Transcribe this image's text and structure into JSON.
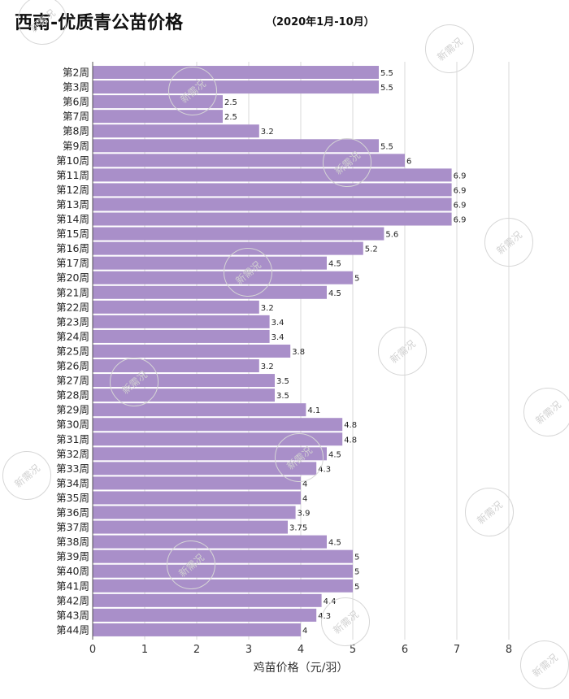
{
  "chart_data": {
    "type": "bar",
    "orientation": "horizontal",
    "title": "西南-优质青公苗价格",
    "subtitle": "（2020年1月-10月）",
    "xlabel": "鸡苗价格（元/羽）",
    "ylabel": "",
    "xlim": [
      0,
      8
    ],
    "xticks": [
      "0",
      "1",
      "2",
      "3",
      "4",
      "5",
      "6",
      "7",
      "8"
    ],
    "grid": true,
    "bar_color": "#a98fc9",
    "categories": [
      "第2周",
      "第3周",
      "第6周",
      "第7周",
      "第8周",
      "第9周",
      "第10周",
      "第11周",
      "第12周",
      "第13周",
      "第14周",
      "第15周",
      "第16周",
      "第17周",
      "第20周",
      "第21周",
      "第22周",
      "第23周",
      "第24周",
      "第25周",
      "第26周",
      "第27周",
      "第28周",
      "第29周",
      "第30周",
      "第31周",
      "第32周",
      "第33周",
      "第34周",
      "第35周",
      "第36周",
      "第37周",
      "第38周",
      "第39周",
      "第40周",
      "第41周",
      "第42周",
      "第43周",
      "第44周"
    ],
    "values": [
      5.5,
      5.5,
      2.5,
      2.5,
      3.2,
      5.5,
      6,
      6.9,
      6.9,
      6.9,
      6.9,
      5.6,
      5.2,
      4.5,
      5,
      4.5,
      3.2,
      3.4,
      3.4,
      3.8,
      3.2,
      3.5,
      3.5,
      4.1,
      4.8,
      4.8,
      4.5,
      4.3,
      4,
      4,
      3.9,
      3.75,
      4.5,
      5,
      5,
      5,
      4.4,
      4.3,
      4
    ],
    "value_labels": [
      "5.5",
      "5.5",
      "2.5",
      "2.5",
      "3.2",
      "5.5",
      "6",
      "6.9",
      "6.9",
      "6.9",
      "6.9",
      "5.6",
      "5.2",
      "4.5",
      "5",
      "4.5",
      "3.2",
      "3.4",
      "3.4",
      "3.8",
      "3.2",
      "3.5",
      "3.5",
      "4.1",
      "4.8",
      "4.8",
      "4.5",
      "4.3",
      "4",
      "4",
      "3.9",
      "3.75",
      "4.5",
      "5",
      "5",
      "5",
      "4.4",
      "4.3",
      "4"
    ]
  },
  "watermark": {
    "text": "新需况"
  }
}
